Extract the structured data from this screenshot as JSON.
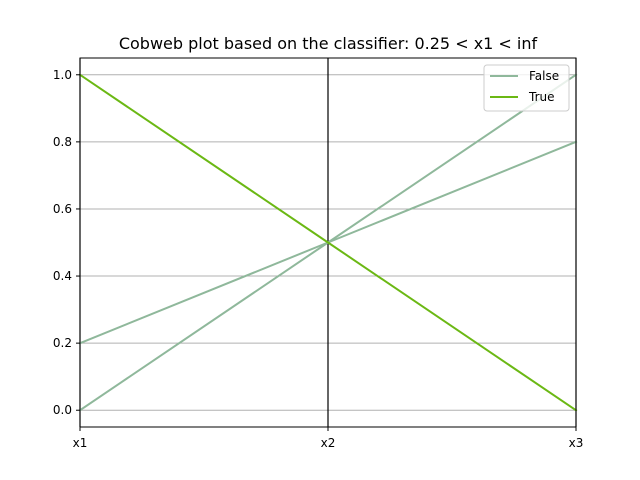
{
  "chart_data": {
    "type": "line",
    "subtype": "parallel-coordinates",
    "title": "Cobweb plot based on the classifier: 0.25 < x1 < inf",
    "categories": [
      "x1",
      "x2",
      "x3"
    ],
    "ylim": [
      -0.05,
      1.05
    ],
    "yticks": [
      0.0,
      0.2,
      0.4,
      0.6,
      0.8,
      1.0
    ],
    "ytick_labels": [
      "0.0",
      "0.2",
      "0.4",
      "0.6",
      "0.8",
      "1.0"
    ],
    "grid": "horizontal",
    "legend_position": "top-right",
    "series": [
      {
        "name": "False",
        "color": "#8fb89b",
        "lines": [
          [
            0.0,
            0.5,
            1.0
          ],
          [
            0.2,
            0.5,
            0.8
          ]
        ]
      },
      {
        "name": "True",
        "color": "#6bb814",
        "lines": [
          [
            1.0,
            0.5,
            0.0
          ]
        ]
      }
    ],
    "legend": [
      "False",
      "True"
    ]
  }
}
